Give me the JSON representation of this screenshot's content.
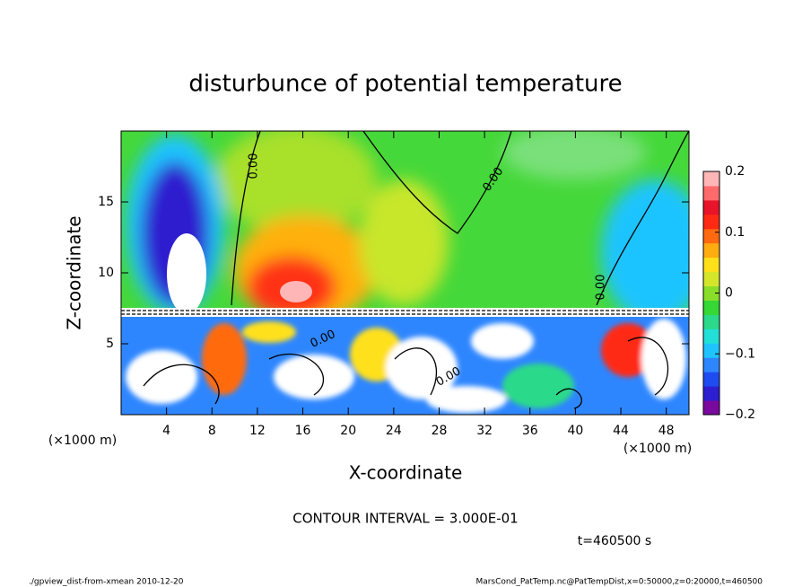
{
  "chart_data": {
    "type": "contour",
    "title": "disturbunce of potential temperature",
    "xlabel": "X-coordinate",
    "ylabel": "Z-coordinate",
    "x_unit": "(×1000 m)",
    "xlim": [
      0,
      50
    ],
    "xticks": [
      4,
      8,
      12,
      16,
      20,
      24,
      28,
      32,
      36,
      40,
      44,
      48
    ],
    "ylim": [
      0,
      20
    ],
    "yticks": [
      5,
      10,
      15
    ],
    "colorbar": {
      "lim": [
        -0.2,
        0.2
      ],
      "ticks": [
        {
          "value": 0.2,
          "label": "0.2"
        },
        {
          "value": 0.1,
          "label": "0.1"
        },
        0,
        {
          "value": -0.1,
          "label": "−0.1"
        },
        {
          "value": -0.2,
          "label": "−0.2"
        }
      ],
      "colors": [
        "#7a0a9e",
        "#2d1ecf",
        "#1f4cf0",
        "#2e86ff",
        "#1fc4ff",
        "#22e0d8",
        "#2ad98a",
        "#35d835",
        "#8ade2a",
        "#d5e62a",
        "#ffe01a",
        "#ffac10",
        "#ff6a10",
        "#ff2a14",
        "#e8142a",
        "#ff6a6a",
        "#ffb6b6"
      ]
    },
    "contour_labels": [
      "0.00",
      "0.00",
      "0.00",
      "0.00",
      "0.00"
    ],
    "contour_interval": "CONTOUR INTERVAL = 3.000E-01",
    "time": "t=460500 s",
    "footer_left": "./gpview_dist-from-xmean  2010-12-20",
    "footer_right": "MarsCond_PatTemp.nc@PatTempDist,x=0:50000,z=0:20000,t=460500"
  }
}
